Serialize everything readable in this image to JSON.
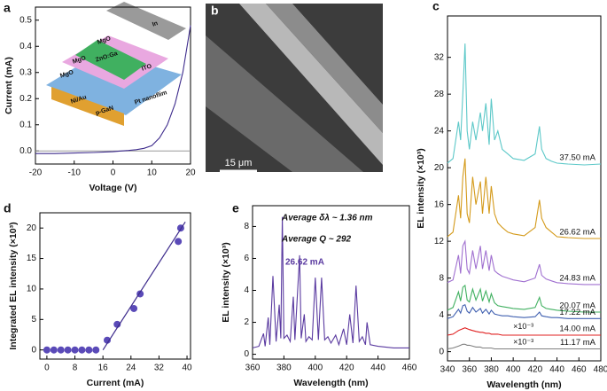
{
  "chart_data": [
    {
      "type": "line",
      "title": "a",
      "xlabel": "Voltage (V)",
      "ylabel": "Current (mA)",
      "x": [
        -20,
        -15,
        -10,
        -5,
        0,
        2,
        4,
        6,
        8,
        10,
        12,
        14,
        16,
        18,
        20
      ],
      "series": [
        {
          "color": "#3d2b8c",
          "values": [
            -0.01,
            -0.01,
            -0.008,
            -0.006,
            -0.003,
            0,
            0.002,
            0.005,
            0.01,
            0.02,
            0.05,
            0.1,
            0.18,
            0.3,
            0.48
          ]
        }
      ],
      "xlim": [
        -20,
        20
      ],
      "ylim": [
        -0.05,
        0.55
      ],
      "xticks": [
        -20,
        -10,
        0,
        10,
        20
      ],
      "yticks": [
        {
          "value": 0,
          "label": "0.0"
        },
        0.1,
        0.2,
        0.3,
        0.4,
        0.5
      ],
      "inset_labels": [
        "In",
        "MgO",
        "MgO",
        "ZnO:Ga",
        "ITO",
        "MgO",
        "Ni/Au",
        "p-GaN",
        "Pt nanoflim"
      ]
    },
    {
      "type": "image",
      "title": "b",
      "scale_label": "15 μm"
    },
    {
      "type": "line",
      "title": "c",
      "xlabel": "Wavelength (nm)",
      "ylabel": "EL intensity (×10³)",
      "x": [
        340,
        345,
        350,
        352,
        354,
        356,
        358,
        360,
        363,
        366,
        370,
        372,
        375,
        378,
        380,
        383,
        386,
        390,
        395,
        400,
        410,
        420,
        424,
        426,
        430,
        435,
        440,
        450,
        465,
        480
      ],
      "series": [
        {
          "name": "37.50 mA",
          "color": "#5cc8c8",
          "values": [
            20.5,
            21,
            25,
            23,
            28,
            33.5,
            24,
            22,
            25,
            23,
            26,
            24,
            27,
            22.5,
            27.5,
            23,
            24,
            22,
            21.5,
            21,
            20.8,
            21.5,
            24.5,
            22,
            21,
            20.7,
            20.5,
            20.4,
            20.3,
            20.4
          ]
        },
        {
          "name": "26.62 mA",
          "color": "#d49a1a",
          "values": [
            12.5,
            13,
            17,
            14.5,
            19,
            21,
            15,
            14,
            19,
            16,
            18.5,
            15,
            19,
            15,
            18,
            15,
            14,
            13.5,
            13,
            12.8,
            12.6,
            13.5,
            16.5,
            14.5,
            13.5,
            13,
            12.5,
            12.4,
            12.3,
            12.3
          ]
        },
        {
          "name": "24.83 mA",
          "color": "#a070d0",
          "values": [
            7.5,
            7.8,
            10.5,
            8.5,
            11.5,
            12,
            9,
            8.5,
            11,
            9,
            11.5,
            9,
            11,
            8.8,
            10.5,
            8.8,
            8.5,
            8.2,
            8,
            7.8,
            7.6,
            8,
            9.5,
            8.3,
            7.9,
            7.7,
            7.5,
            7.4,
            7.3,
            7.3
          ]
        },
        {
          "name": "20.07 mA",
          "color": "#40b060",
          "values": [
            4.5,
            4.8,
            6.5,
            5.5,
            7,
            7.2,
            5.6,
            5.4,
            6.8,
            5.6,
            6.8,
            5.5,
            6.6,
            5.4,
            6.3,
            5.3,
            5,
            4.9,
            4.8,
            4.7,
            4.6,
            4.8,
            5.9,
            5,
            4.7,
            4.6,
            4.5,
            4.4,
            4.3,
            4.3
          ]
        },
        {
          "name": "17.22 mA",
          "color": "#4060b0",
          "values": [
            3.6,
            3.8,
            4.6,
            4.2,
            5,
            5.1,
            4.4,
            4.2,
            4.8,
            4.3,
            4.7,
            4.2,
            4.6,
            4.1,
            4.5,
            4.1,
            4,
            3.9,
            3.9,
            3.8,
            3.7,
            3.8,
            4.3,
            3.9,
            3.8,
            3.7,
            3.7,
            3.6,
            3.6,
            3.6
          ]
        },
        {
          "name": "14.00 mA",
          "color": "#e02020",
          "values": [
            1.8,
            1.9,
            2.3,
            2.4,
            2.5,
            2.6,
            2.5,
            2.4,
            2.3,
            2.2,
            2.1,
            2.1,
            2,
            2,
            1.9,
            1.9,
            1.9,
            1.8,
            1.8,
            1.8,
            1.8,
            1.8,
            1.8,
            1.8,
            1.8,
            1.8,
            1.8,
            1.8,
            1.8,
            1.8
          ]
        },
        {
          "name": "11.17 mA",
          "color": "#808080",
          "values": [
            0.3,
            0.4,
            0.6,
            0.7,
            0.8,
            0.8,
            0.7,
            0.7,
            0.6,
            0.5,
            0.5,
            0.4,
            0.4,
            0.4,
            0.4,
            0.3,
            0.3,
            0.3,
            0.3,
            0.3,
            0.3,
            0.3,
            0.3,
            0.3,
            0.3,
            0.3,
            0.3,
            0.3,
            0.3,
            0.3
          ]
        }
      ],
      "annotations": [
        "×10⁻³",
        "×10⁻³"
      ],
      "xlim": [
        340,
        480
      ],
      "ylim": [
        -1,
        36.5
      ],
      "xticks": [
        340,
        360,
        380,
        400,
        420,
        440,
        460,
        480
      ],
      "yticks": [
        0,
        4,
        8,
        12,
        16,
        20,
        24,
        28,
        32
      ]
    },
    {
      "type": "scatter",
      "title": "d",
      "xlabel": "Current (mA)",
      "ylabel": "Integrated EL intensity (×10³)",
      "series": [
        {
          "mode": "markers",
          "color": "#5a4ab8",
          "x": [
            0,
            2,
            4,
            6,
            8,
            10,
            12,
            14,
            17.22,
            20.07,
            24.83,
            26.62,
            37.5,
            38.2
          ],
          "values": [
            0,
            0,
            0,
            0,
            0,
            0,
            0,
            0,
            1.6,
            4.2,
            6.8,
            9.2,
            17.8,
            20
          ]
        },
        {
          "mode": "line",
          "color": "#3d2b8c",
          "x": [
            16,
            39.5
          ],
          "values": [
            0,
            21
          ]
        }
      ],
      "xlim": [
        -2,
        41
      ],
      "ylim": [
        -1.5,
        22.5
      ],
      "xticks": [
        0,
        8,
        16,
        24,
        32,
        40
      ],
      "yticks": [
        0,
        5,
        10,
        15,
        20
      ]
    },
    {
      "type": "line",
      "title": "e",
      "xlabel": "Wavelength (nm)",
      "ylabel": "EL intensity (×10³)",
      "x": [
        360,
        364,
        367,
        368,
        370,
        371,
        373,
        375,
        377,
        378,
        379,
        380,
        382,
        384,
        386,
        387,
        390,
        391,
        393,
        394,
        396,
        398,
        400,
        402,
        404,
        406,
        408,
        410,
        413,
        415,
        418,
        420,
        422,
        424,
        426,
        428,
        430,
        432,
        433,
        435,
        440,
        450,
        460
      ],
      "series": [
        {
          "color": "#5a3aa0",
          "values": [
            0.4,
            0.5,
            1.3,
            0.5,
            2.3,
            0.6,
            4.9,
            0.8,
            3.1,
            1,
            8.6,
            1,
            1.2,
            0.8,
            3.6,
            0.9,
            6.2,
            1,
            2.5,
            0.8,
            1.1,
            0.9,
            4.8,
            0.9,
            4.8,
            0.9,
            1.1,
            0.7,
            1.2,
            0.6,
            1.6,
            0.6,
            2.5,
            0.7,
            4.3,
            0.8,
            1.1,
            0.6,
            2,
            0.6,
            0.5,
            0.4,
            0.4
          ]
        }
      ],
      "annotations": [
        "Average δλ ~ 1.36 nm",
        "Average Q ~ 292",
        "26.62 mA"
      ],
      "xlim": [
        360,
        460
      ],
      "ylim": [
        -0.3,
        9.3
      ],
      "xticks": [
        360,
        380,
        400,
        420,
        440,
        460
      ],
      "yticks": [
        0,
        2,
        4,
        6,
        8
      ]
    }
  ]
}
